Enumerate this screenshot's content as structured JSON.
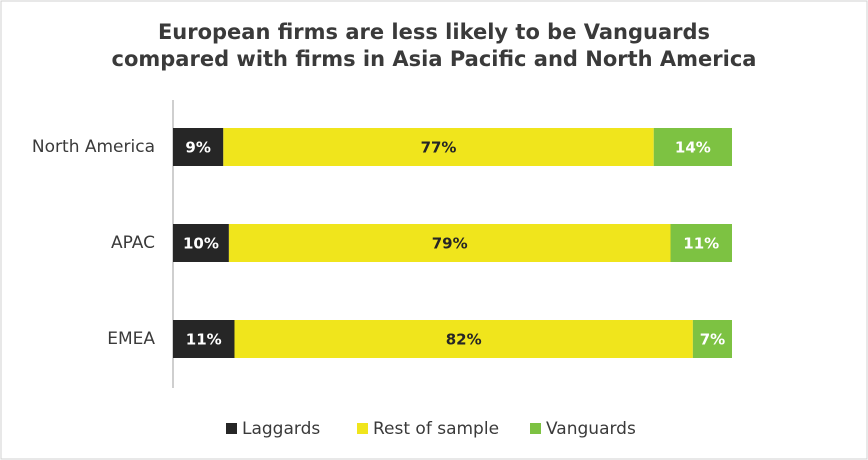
{
  "chart_data": {
    "type": "stacked-bar-horizontal",
    "title": [
      "European firms are less likely to be Vanguards",
      "compared with firms in Asia Pacific and North America"
    ],
    "categories": [
      "North America",
      "APAC",
      "EMEA"
    ],
    "series": [
      {
        "name": "Laggards",
        "color": "#262626",
        "values": [
          9,
          10,
          11
        ],
        "value_labels": [
          "9%",
          "10%",
          "11%"
        ]
      },
      {
        "name": "Rest of sample",
        "color": "#f0e51c",
        "values": [
          77,
          79,
          82
        ],
        "value_labels": [
          "77%",
          "79%",
          "82%"
        ]
      },
      {
        "name": "Vanguards",
        "color": "#7dc242",
        "values": [
          14,
          11,
          7
        ],
        "value_labels": [
          "14%",
          "11%",
          "7%"
        ]
      }
    ],
    "xlim": [
      0,
      100
    ],
    "legend": "bottom"
  }
}
